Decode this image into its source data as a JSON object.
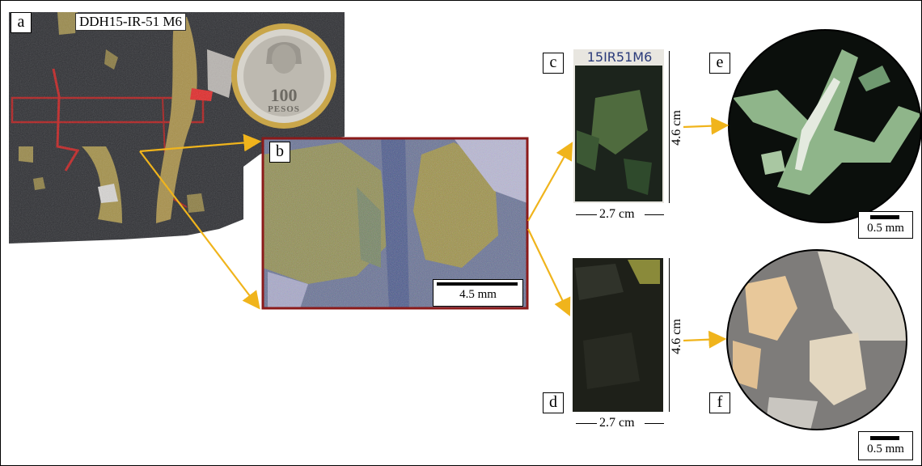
{
  "panels": {
    "a": {
      "label": "a",
      "sample_id": "DDH15-IR-51 M6"
    },
    "b": {
      "label": "b",
      "scale": "4.5 mm"
    },
    "c": {
      "label": "c",
      "width": "2.7 cm",
      "height": "4.6 cm",
      "slab_text": "15IR51M6"
    },
    "d": {
      "label": "d",
      "width": "2.7 cm",
      "height": "4.6 cm"
    },
    "e": {
      "label": "e",
      "scale": "0.5 mm"
    },
    "f": {
      "label": "f",
      "scale": "0.5 mm"
    }
  },
  "coin": {
    "denomination": "100",
    "word": "PESOS"
  },
  "colors": {
    "arrow": "#f0b41c",
    "b_frame": "#8b1a1a",
    "rock_dark": "#2f3034",
    "mineral_gold": "#b59a45",
    "thin_section_green": "#8fb58a",
    "reflected_light_bg": "#7e7c7a",
    "reflected_light_sulfide": "#e8c89a"
  }
}
